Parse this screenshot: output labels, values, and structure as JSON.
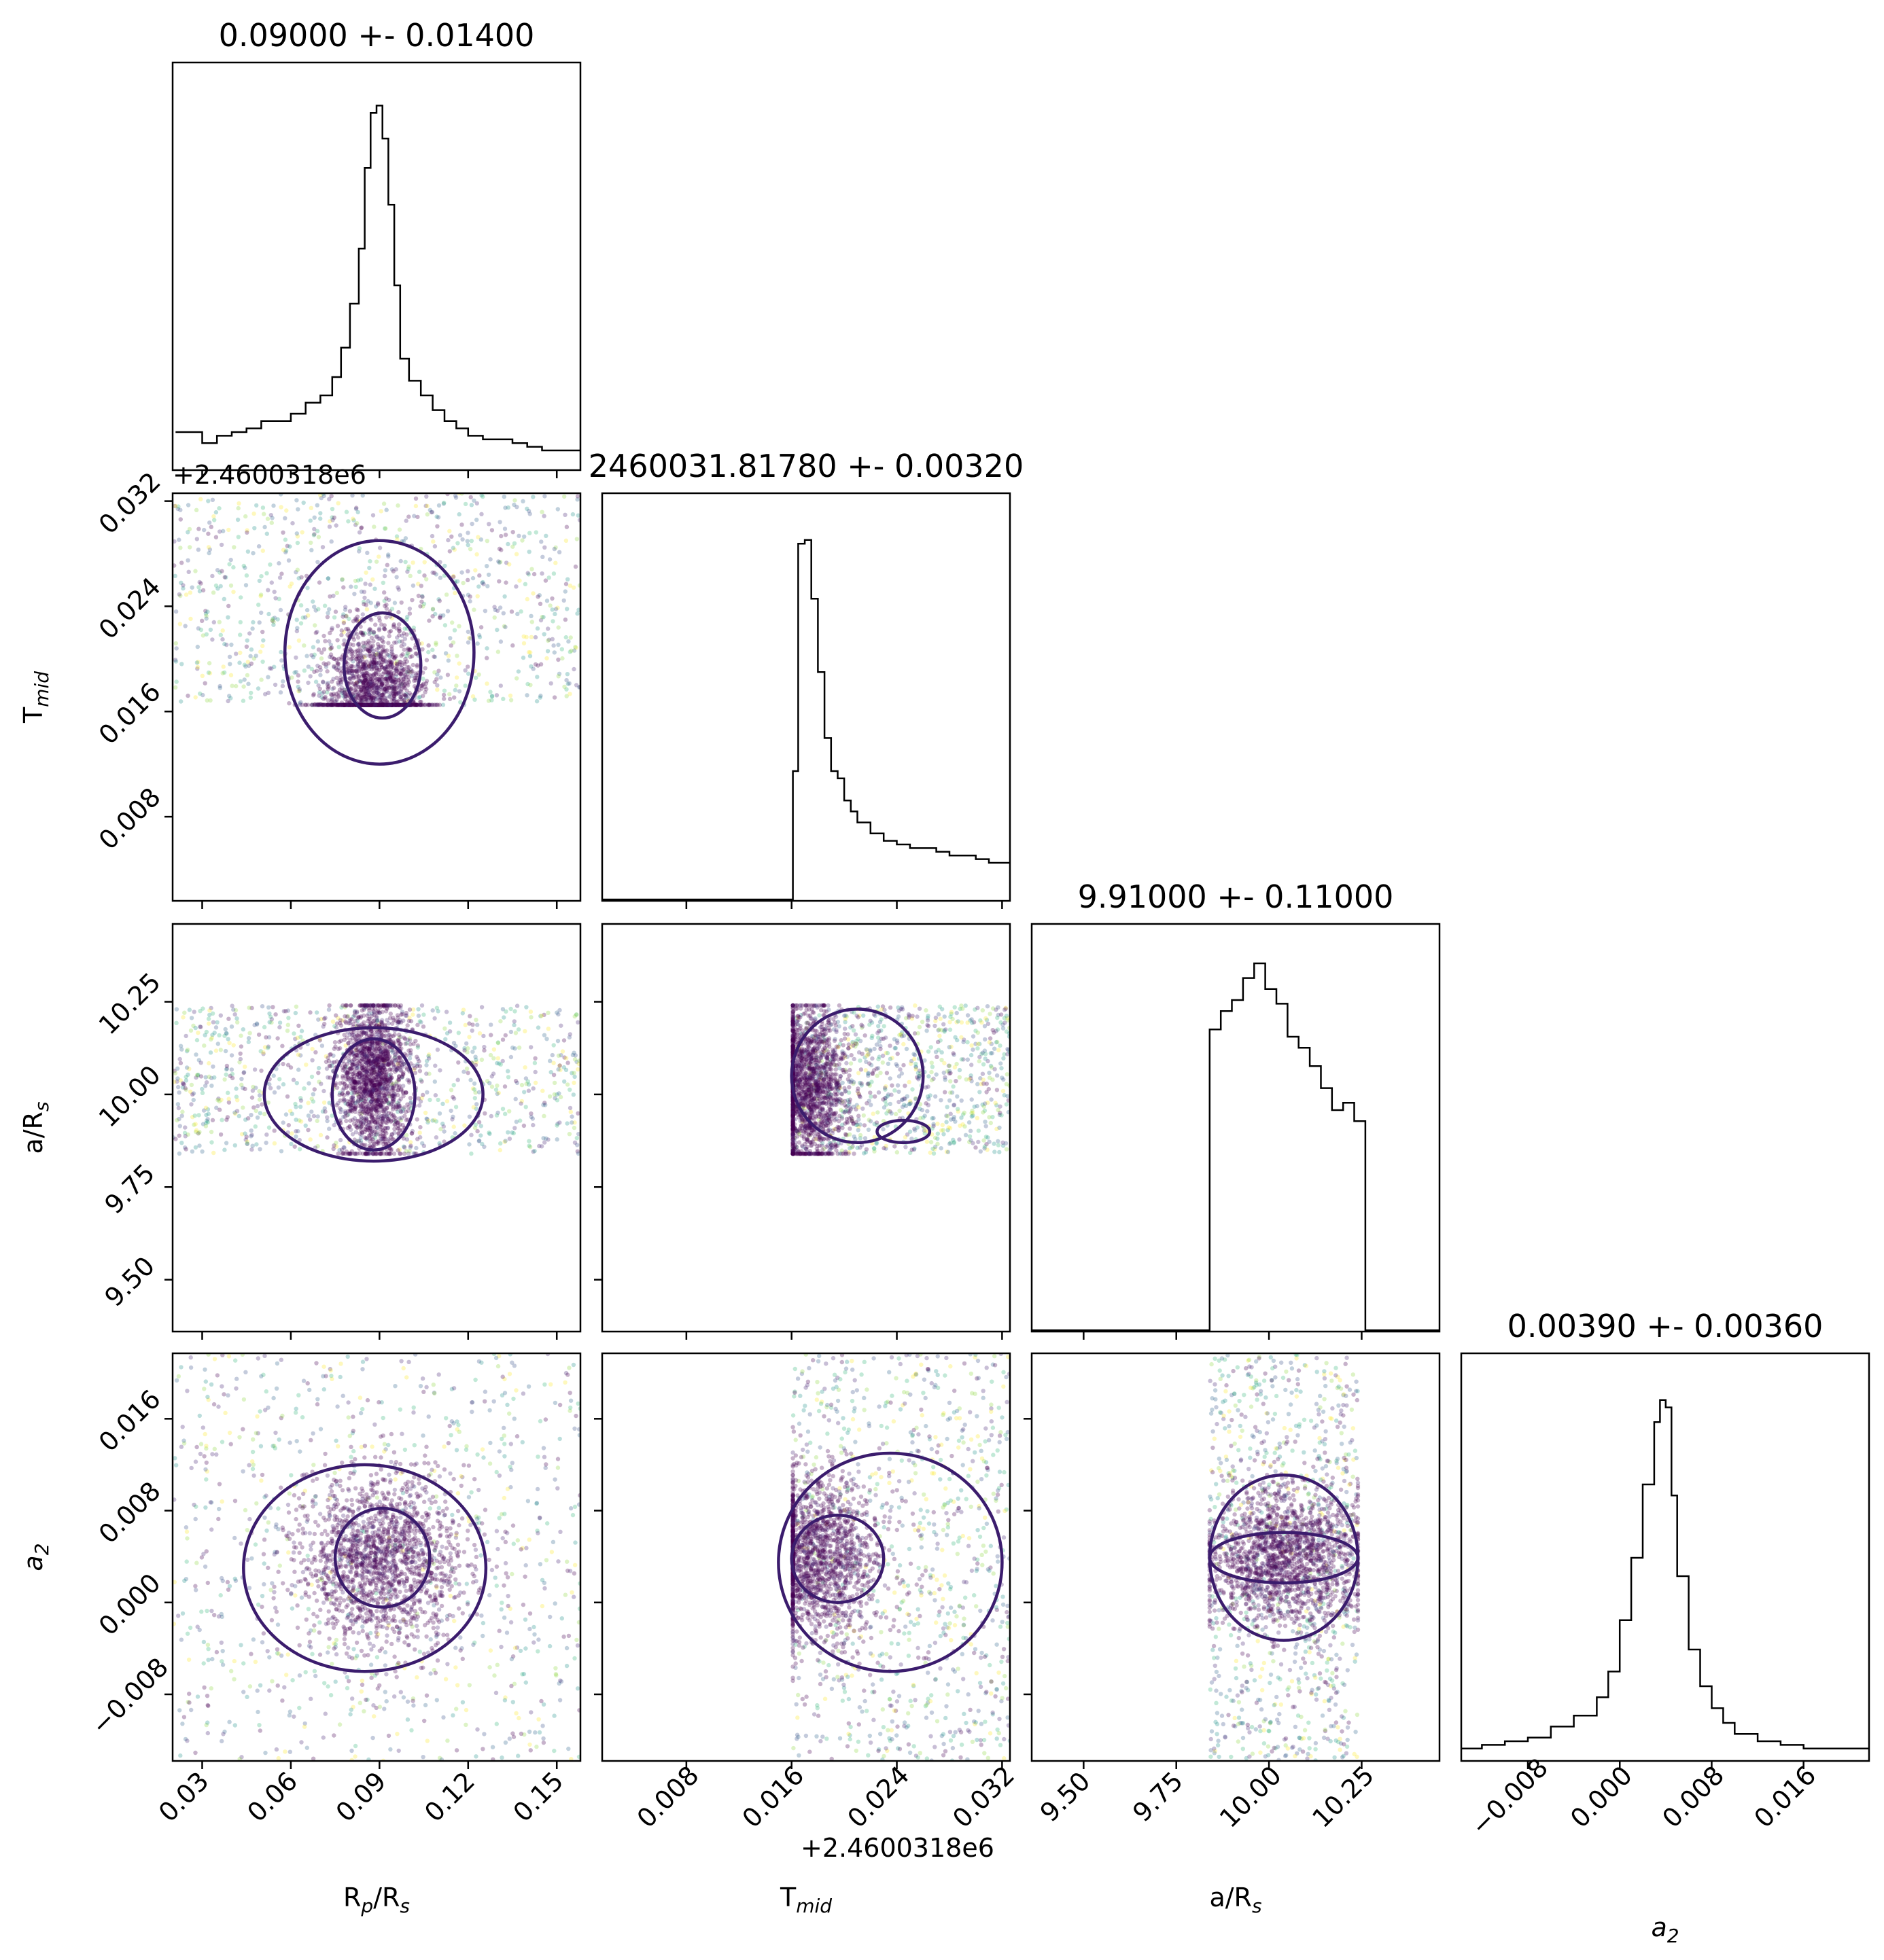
{
  "chart_data": {
    "type": "scatter",
    "variant": "corner-plot",
    "parameters": [
      {
        "key": "rp",
        "label": "R_p/R_s",
        "title": "0.09000 +- 0.01400",
        "range": [
          0.02,
          0.158
        ],
        "ticks": [
          "0.03",
          "0.06",
          "0.09",
          "0.12",
          "0.15"
        ],
        "tick_values": [
          0.03,
          0.06,
          0.09,
          0.12,
          0.15
        ],
        "histogram": {
          "x": [
            0.021,
            0.025,
            0.03,
            0.035,
            0.04,
            0.045,
            0.05,
            0.055,
            0.06,
            0.065,
            0.07,
            0.074,
            0.077,
            0.08,
            0.083,
            0.085,
            0.087,
            0.089,
            0.091,
            0.093,
            0.095,
            0.097,
            0.1,
            0.104,
            0.108,
            0.112,
            0.116,
            0.12,
            0.125,
            0.13,
            0.135,
            0.14,
            0.145,
            0.15,
            0.155
          ],
          "counts": [
            0.1,
            0.1,
            0.07,
            0.09,
            0.1,
            0.11,
            0.13,
            0.13,
            0.15,
            0.18,
            0.2,
            0.25,
            0.33,
            0.45,
            0.6,
            0.82,
            0.97,
            0.99,
            0.9,
            0.72,
            0.5,
            0.3,
            0.24,
            0.2,
            0.16,
            0.13,
            0.11,
            0.09,
            0.08,
            0.08,
            0.07,
            0.06,
            0.05,
            0.05,
            0.05
          ]
        }
      },
      {
        "key": "tmid",
        "label": "T_mid",
        "title": "2460031.81780 +- 0.00320",
        "offset_text": "+2.4600318e6",
        "range": [
          0.0016,
          0.0326
        ],
        "ticks": [
          "0.008",
          "0.016",
          "0.024",
          "0.032"
        ],
        "tick_values": [
          0.008,
          0.016,
          0.024,
          0.032
        ],
        "histogram": {
          "x": [
            0.0016,
            0.004,
            0.008,
            0.012,
            0.0161,
            0.0165,
            0.017,
            0.0175,
            0.018,
            0.0185,
            0.019,
            0.0195,
            0.02,
            0.0205,
            0.021,
            0.022,
            0.023,
            0.024,
            0.025,
            0.026,
            0.027,
            0.028,
            0.029,
            0.03,
            0.031,
            0.032
          ],
          "counts": [
            0,
            0,
            0,
            0,
            0.35,
            0.97,
            0.98,
            0.82,
            0.62,
            0.44,
            0.35,
            0.33,
            0.27,
            0.24,
            0.21,
            0.18,
            0.16,
            0.15,
            0.14,
            0.14,
            0.13,
            0.12,
            0.12,
            0.11,
            0.1,
            0.1
          ]
        }
      },
      {
        "key": "ars",
        "label": "a/R_s",
        "title": "9.91000 +- 0.11000",
        "range": [
          9.36,
          10.46
        ],
        "ticks": [
          "9.50",
          "9.75",
          "10.00",
          "10.25"
        ],
        "tick_values": [
          9.5,
          9.75,
          10.0,
          10.25
        ],
        "histogram": {
          "x": [
            9.36,
            9.6,
            9.84,
            9.87,
            9.9,
            9.93,
            9.96,
            9.99,
            10.02,
            10.05,
            10.08,
            10.11,
            10.14,
            10.17,
            10.2,
            10.23,
            10.26
          ],
          "counts": [
            0,
            0,
            0.82,
            0.87,
            0.9,
            0.96,
            1.0,
            0.93,
            0.89,
            0.8,
            0.77,
            0.72,
            0.66,
            0.6,
            0.62,
            0.57,
            0
          ]
        }
      },
      {
        "key": "a2",
        "label": "a_2",
        "title": "0.00390 +- 0.00360",
        "range": [
          -0.0138,
          0.0217
        ],
        "ticks": [
          "−0.008",
          "0.000",
          "0.008",
          "0.016"
        ],
        "tick_values": [
          -0.008,
          0.0,
          0.008,
          0.016
        ],
        "histogram": {
          "x": [
            -0.0138,
            -0.012,
            -0.01,
            -0.008,
            -0.006,
            -0.004,
            -0.002,
            -0.001,
            0.0,
            0.001,
            0.002,
            0.003,
            0.0035,
            0.004,
            0.0045,
            0.005,
            0.006,
            0.007,
            0.008,
            0.009,
            0.01,
            0.012,
            0.014,
            0.016,
            0.018,
            0.02
          ],
          "counts": [
            0.03,
            0.04,
            0.05,
            0.06,
            0.09,
            0.12,
            0.17,
            0.24,
            0.38,
            0.55,
            0.75,
            0.92,
            0.98,
            0.96,
            0.72,
            0.5,
            0.3,
            0.2,
            0.14,
            0.1,
            0.07,
            0.05,
            0.04,
            0.03,
            0.03,
            0.03
          ]
        }
      }
    ],
    "pairs": [
      {
        "x": "rp",
        "y": "tmid",
        "points": {
          "x_range": [
            0.02,
            0.158
          ],
          "y_range": [
            0.0165,
            0.0326
          ],
          "center": [
            0.088,
            0.0172
          ],
          "spread": [
            0.009,
            0.003
          ]
        },
        "contours": [
          {
            "center": [
              0.09,
              0.0205
            ],
            "radii": [
              0.032,
              0.0085
            ]
          },
          {
            "center": [
              0.091,
              0.0195
            ],
            "radii": [
              0.013,
              0.004
            ]
          }
        ]
      },
      {
        "x": "rp",
        "y": "ars",
        "points": {
          "x_range": [
            0.02,
            0.158
          ],
          "y_range": [
            9.84,
            10.24
          ],
          "center": [
            0.088,
            10.05
          ],
          "spread": [
            0.006,
            0.11
          ]
        },
        "contours": [
          {
            "center": [
              0.088,
              10.0
            ],
            "radii": [
              0.037,
              0.18
            ]
          },
          {
            "center": [
              0.088,
              10.0
            ],
            "radii": [
              0.014,
              0.15
            ]
          }
        ]
      },
      {
        "x": "tmid",
        "y": "ars",
        "points": {
          "x_range": [
            0.0161,
            0.0326
          ],
          "y_range": [
            9.84,
            10.24
          ],
          "center": [
            0.0172,
            10.02
          ],
          "spread": [
            0.0015,
            0.11
          ]
        },
        "contours": [
          {
            "center": [
              0.021,
              10.05
            ],
            "radii": [
              0.005,
              0.18
            ]
          },
          {
            "center": [
              0.0245,
              9.9
            ],
            "radii": [
              0.002,
              0.03
            ]
          }
        ]
      },
      {
        "x": "rp",
        "y": "a2",
        "points": {
          "x_range": [
            0.02,
            0.158
          ],
          "y_range": [
            -0.0138,
            0.0217
          ],
          "center": [
            0.09,
            0.0039
          ],
          "spread": [
            0.014,
            0.0036
          ]
        },
        "contours": [
          {
            "center": [
              0.085,
              0.003
            ],
            "radii": [
              0.041,
              0.009
            ]
          },
          {
            "center": [
              0.091,
              0.0039
            ],
            "radii": [
              0.016,
              0.0043
            ]
          }
        ]
      },
      {
        "x": "tmid",
        "y": "a2",
        "points": {
          "x_range": [
            0.0161,
            0.0326
          ],
          "y_range": [
            -0.0138,
            0.0217
          ],
          "center": [
            0.0178,
            0.0039
          ],
          "spread": [
            0.0025,
            0.0036
          ]
        },
        "contours": [
          {
            "center": [
              0.0235,
              0.0035
            ],
            "radii": [
              0.0085,
              0.0095
            ]
          },
          {
            "center": [
              0.0195,
              0.0038
            ],
            "radii": [
              0.0035,
              0.0038
            ]
          }
        ]
      },
      {
        "x": "ars",
        "y": "a2",
        "points": {
          "x_range": [
            9.84,
            10.24
          ],
          "y_range": [
            -0.0138,
            0.0217
          ],
          "center": [
            10.04,
            0.0039
          ],
          "spread": [
            0.11,
            0.003
          ]
        },
        "contours": [
          {
            "center": [
              10.04,
              0.0039
            ],
            "radii": [
              0.2,
              0.0072
            ]
          },
          {
            "center": [
              10.04,
              0.0039
            ],
            "radii": [
              0.2,
              0.0022
            ]
          }
        ]
      }
    ],
    "contour_color": "#3b1c6d",
    "point_colors": [
      "#440154",
      "#482878",
      "#3b528b",
      "#31688e",
      "#21918c",
      "#35b779",
      "#90d743",
      "#fde725"
    ],
    "hist_color": "#000000",
    "grid": false,
    "legend": "none"
  }
}
